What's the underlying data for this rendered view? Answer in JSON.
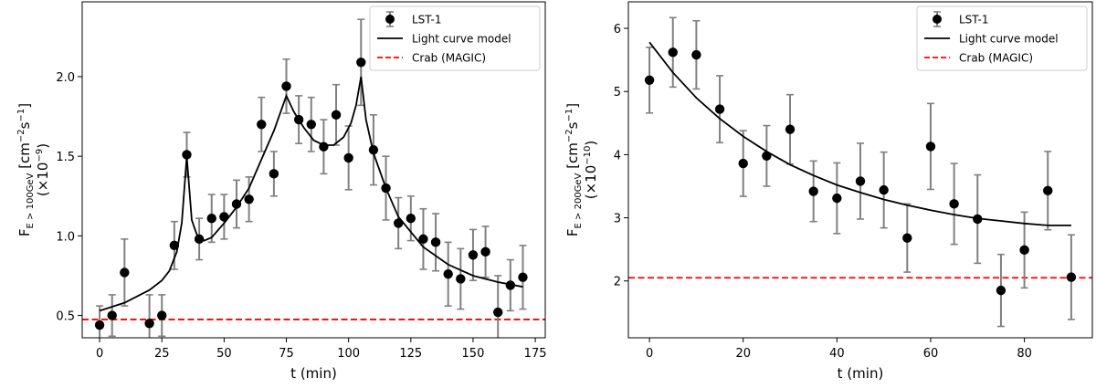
{
  "chart_data": [
    {
      "type": "scatter",
      "xlabel": "t (min)",
      "ylabel": {
        "main": "F",
        "sub": "E > 100GeV",
        "units": "[cm",
        "exp1": "−2",
        "mid": "s",
        "exp2": "−1",
        "close": "]",
        "scale": "(×10",
        "scale_exp": "−9",
        "scale_close": ")"
      },
      "xlim": [
        -7,
        179
      ],
      "ylim": [
        0.36,
        2.47
      ],
      "xticks": [
        0,
        25,
        50,
        75,
        100,
        125,
        150,
        175
      ],
      "yticks": [
        0.5,
        1.0,
        1.5,
        2.0
      ],
      "ytick_labels": [
        "0.5",
        "1.0",
        "1.5",
        "2.0"
      ],
      "legend": {
        "location": "top-right",
        "entries": [
          "LST-1",
          "Light curve model",
          "Crab (MAGIC)"
        ]
      },
      "colors": {
        "points": "#000000",
        "errorbars": "#808080",
        "model": "#000000",
        "crab": "#ff0000"
      },
      "series": [
        {
          "name": "LST-1",
          "kind": "errorbar",
          "x": [
            0,
            5,
            10,
            20,
            25,
            30,
            35,
            40,
            45,
            50,
            55,
            60,
            65,
            70,
            75,
            80,
            85,
            90,
            95,
            100,
            105,
            110,
            115,
            120,
            125,
            130,
            135,
            140,
            145,
            150,
            155,
            160,
            165,
            170
          ],
          "y": [
            0.44,
            0.5,
            0.77,
            0.45,
            0.5,
            0.94,
            1.51,
            0.98,
            1.11,
            1.12,
            1.2,
            1.23,
            1.7,
            1.39,
            1.94,
            1.73,
            1.7,
            1.56,
            1.76,
            1.49,
            2.09,
            1.54,
            1.3,
            1.08,
            1.11,
            0.98,
            0.96,
            0.76,
            0.73,
            0.88,
            0.9,
            0.52,
            0.69,
            0.74
          ],
          "yerr": [
            0.12,
            0.13,
            0.21,
            0.18,
            0.13,
            0.15,
            0.14,
            0.13,
            0.15,
            0.14,
            0.15,
            0.14,
            0.17,
            0.14,
            0.17,
            0.15,
            0.17,
            0.17,
            0.19,
            0.2,
            0.27,
            0.22,
            0.2,
            0.16,
            0.14,
            0.19,
            0.18,
            0.2,
            0.19,
            0.16,
            0.16,
            0.23,
            0.16,
            0.2
          ]
        },
        {
          "name": "Light curve model",
          "kind": "line",
          "x": [
            0,
            10,
            20,
            25,
            28,
            31,
            33,
            35,
            37,
            39,
            42,
            45,
            50,
            55,
            60,
            65,
            70,
            75,
            78,
            82,
            86,
            90,
            94,
            98,
            101,
            103,
            105,
            107,
            110,
            115,
            120,
            130,
            140,
            150,
            160,
            170
          ],
          "y": [
            0.53,
            0.58,
            0.66,
            0.72,
            0.78,
            0.9,
            1.08,
            1.5,
            1.1,
            1.01,
            0.97,
            0.99,
            1.08,
            1.18,
            1.3,
            1.48,
            1.66,
            1.88,
            1.78,
            1.68,
            1.6,
            1.57,
            1.57,
            1.62,
            1.71,
            1.82,
            2.0,
            1.73,
            1.52,
            1.3,
            1.12,
            0.93,
            0.82,
            0.75,
            0.71,
            0.68
          ]
        },
        {
          "name": "Crab (MAGIC)",
          "kind": "hline",
          "y": 0.475
        }
      ]
    },
    {
      "type": "scatter",
      "xlabel": "t (min)",
      "ylabel": {
        "main": "F",
        "sub": "E > 200GeV",
        "units": "[cm",
        "exp1": "−2",
        "mid": "s",
        "exp2": "−1",
        "close": "]",
        "scale": "(×10",
        "scale_exp": "−10",
        "scale_close": ")"
      },
      "xlim": [
        -4.5,
        94.5
      ],
      "ylim": [
        1.1,
        6.42
      ],
      "xticks": [
        0,
        20,
        40,
        60,
        80
      ],
      "yticks": [
        2,
        3,
        4,
        5,
        6
      ],
      "ytick_labels": [
        "2",
        "3",
        "4",
        "5",
        "6"
      ],
      "legend": {
        "location": "top-right",
        "entries": [
          "LST-1",
          "Light curve model",
          "Crab (MAGIC)"
        ]
      },
      "colors": {
        "points": "#000000",
        "errorbars": "#808080",
        "model": "#000000",
        "crab": "#ff0000"
      },
      "series": [
        {
          "name": "LST-1",
          "kind": "errorbar",
          "x": [
            0,
            5,
            10,
            15,
            20,
            25,
            30,
            35,
            40,
            45,
            50,
            55,
            60,
            65,
            70,
            75,
            80,
            85,
            90
          ],
          "y": [
            5.18,
            5.62,
            5.58,
            4.72,
            3.86,
            3.98,
            4.4,
            3.42,
            3.31,
            3.58,
            3.44,
            2.68,
            4.13,
            3.22,
            2.98,
            1.85,
            2.49,
            3.43,
            2.06
          ],
          "yerr": [
            0.52,
            0.55,
            0.54,
            0.53,
            0.52,
            0.48,
            0.55,
            0.48,
            0.56,
            0.6,
            0.6,
            0.54,
            0.68,
            0.64,
            0.7,
            0.57,
            0.6,
            0.62,
            0.67
          ]
        },
        {
          "name": "Light curve model",
          "kind": "line",
          "x": [
            0,
            5,
            10,
            15,
            20,
            25,
            30,
            35,
            40,
            45,
            50,
            55,
            60,
            65,
            70,
            75,
            80,
            85,
            90
          ],
          "y": [
            5.78,
            5.3,
            4.9,
            4.57,
            4.29,
            4.05,
            3.84,
            3.67,
            3.52,
            3.4,
            3.29,
            3.2,
            3.12,
            3.05,
            2.99,
            2.95,
            2.91,
            2.88,
            2.88
          ]
        },
        {
          "name": "Crab (MAGIC)",
          "kind": "hline",
          "y": 2.05
        }
      ]
    }
  ]
}
